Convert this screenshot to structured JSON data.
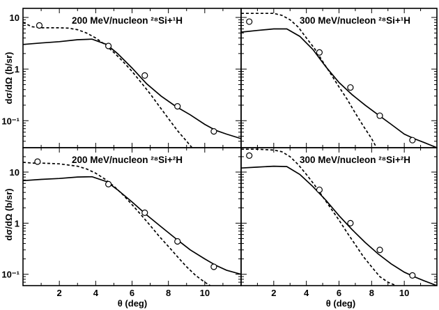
{
  "chart_data": {
    "type": "line",
    "shared": {
      "ylabel": "dσ/dΩ (b/sr)",
      "xlabel": "θ (deg)",
      "x_ticks": [
        2,
        4,
        6,
        8,
        10
      ],
      "y_scale": "log",
      "y_ticks": [
        {
          "value": 0.1,
          "label": "10⁻¹"
        },
        {
          "value": 1,
          "label": "1"
        },
        {
          "value": 10,
          "label": "10"
        }
      ]
    },
    "panels": [
      {
        "title": "200 MeV/nucleon ²⁸Si+¹H",
        "xlim": [
          0,
          12
        ],
        "ylim": [
          0.03,
          15
        ],
        "series": [
          {
            "style": "solid",
            "x": [
              0,
              1,
              2,
              3,
              3.8,
              4.6,
              5.2,
              6,
              6.8,
              7.6,
              8.4,
              9.2,
              10,
              10.6,
              11.2,
              12
            ],
            "y": [
              3.0,
              3.2,
              3.4,
              3.7,
              3.8,
              3.0,
              2.0,
              1.05,
              0.52,
              0.3,
              0.19,
              0.13,
              0.085,
              0.065,
              0.055,
              0.045
            ]
          },
          {
            "style": "dashed",
            "x": [
              0,
              0.5,
              1,
              1.5,
              2,
              2.5,
              3,
              3.5,
              4,
              4.5,
              5,
              5.5,
              6,
              6.5,
              7,
              7.5,
              8,
              8.5,
              9,
              9.3
            ],
            "y": [
              8.0,
              6.6,
              6.3,
              6.3,
              6.3,
              6.2,
              5.8,
              5.0,
              4.0,
              3.0,
              2.1,
              1.4,
              0.9,
              0.55,
              0.33,
              0.19,
              0.11,
              0.064,
              0.04,
              0.03
            ]
          }
        ],
        "points": [
          [
            0.9,
            7.0
          ],
          [
            4.7,
            2.8
          ],
          [
            6.7,
            0.75
          ],
          [
            8.5,
            0.19
          ],
          [
            10.5,
            0.062
          ]
        ]
      },
      {
        "title": "300 MeV/nucleon ²⁸Si+¹H",
        "xlim": [
          0,
          12
        ],
        "ylim": [
          0.03,
          15
        ],
        "series": [
          {
            "style": "solid",
            "x": [
              0,
              1,
              2,
              2.8,
              3.6,
              4.4,
              5.2,
              6,
              6.8,
              7.6,
              8.4,
              9.2,
              10,
              10.6,
              11.2,
              12
            ],
            "y": [
              5.2,
              5.6,
              6.0,
              6.0,
              4.3,
              2.4,
              1.1,
              0.55,
              0.32,
              0.2,
              0.13,
              0.085,
              0.055,
              0.045,
              0.038,
              0.03
            ]
          },
          {
            "style": "dashed",
            "x": [
              0,
              1,
              2,
              2.5,
              3,
              3.5,
              4,
              4.5,
              5,
              5.5,
              6,
              6.5,
              7,
              7.5,
              8,
              8.3
            ],
            "y": [
              12,
              12,
              12,
              11,
              9,
              6.5,
              4.0,
              2.5,
              1.4,
              0.8,
              0.45,
              0.26,
              0.14,
              0.078,
              0.045,
              0.03
            ]
          }
        ],
        "points": [
          [
            0.5,
            8.3
          ],
          [
            4.8,
            2.1
          ],
          [
            6.7,
            0.44
          ],
          [
            8.5,
            0.125
          ],
          [
            10.5,
            0.042
          ]
        ]
      },
      {
        "title": "200 MeV/nucleon ²⁸Si+²H",
        "xlim": [
          0,
          12
        ],
        "ylim": [
          0.06,
          30
        ],
        "series": [
          {
            "style": "solid",
            "x": [
              0,
              1,
              2,
              3,
              3.8,
              4.6,
              5.2,
              6,
              6.8,
              7.6,
              8.4,
              9.2,
              10,
              10.6,
              11.2,
              12
            ],
            "y": [
              6.8,
              7.2,
              7.5,
              8.0,
              8.1,
              6.5,
              4.5,
              2.6,
              1.45,
              0.85,
              0.5,
              0.3,
              0.2,
              0.15,
              0.12,
              0.1
            ]
          },
          {
            "style": "dashed",
            "x": [
              0,
              0.5,
              1,
              2,
              3,
              3.5,
              4,
              4.5,
              5,
              5.5,
              6,
              6.5,
              7,
              7.5,
              8,
              8.5,
              9,
              9.5,
              10,
              10.3
            ],
            "y": [
              15.5,
              15,
              15,
              14.5,
              13,
              11.5,
              9.5,
              7.3,
              5.3,
              3.6,
              2.3,
              1.45,
              0.9,
              0.55,
              0.35,
              0.22,
              0.14,
              0.095,
              0.07,
              0.06
            ]
          }
        ],
        "points": [
          [
            0.8,
            16.0
          ],
          [
            4.7,
            5.8
          ],
          [
            6.7,
            1.6
          ],
          [
            8.5,
            0.44
          ],
          [
            10.5,
            0.14
          ]
        ]
      },
      {
        "title": "300 MeV/nucleon ²⁸Si+²H",
        "xlim": [
          0,
          12
        ],
        "ylim": [
          0.06,
          30
        ],
        "series": [
          {
            "style": "solid",
            "x": [
              0,
              1,
              2,
              2.8,
              3.6,
              4.4,
              5.2,
              6,
              6.8,
              7.6,
              8.4,
              9.2,
              10,
              10.6,
              11.2,
              12
            ],
            "y": [
              12,
              12.5,
              13,
              12.8,
              9.0,
              5.2,
              2.8,
              1.4,
              0.75,
              0.42,
              0.25,
              0.16,
              0.11,
              0.09,
              0.075,
              0.06
            ]
          },
          {
            "style": "dashed",
            "x": [
              0,
              1,
              2,
              2.5,
              3,
              3.5,
              4,
              4.5,
              5,
              5.5,
              6,
              6.5,
              7,
              7.5,
              8,
              8.5,
              9,
              9.5
            ],
            "y": [
              28,
              28,
              27,
              25,
              20,
              14,
              9.0,
              5.6,
              3.3,
              1.95,
              1.15,
              0.65,
              0.38,
              0.22,
              0.14,
              0.09,
              0.07,
              0.06
            ]
          }
        ],
        "points": [
          [
            0.5,
            21.0
          ],
          [
            4.8,
            4.5
          ],
          [
            6.7,
            1.0
          ],
          [
            8.5,
            0.3
          ],
          [
            10.5,
            0.095
          ]
        ]
      }
    ]
  }
}
